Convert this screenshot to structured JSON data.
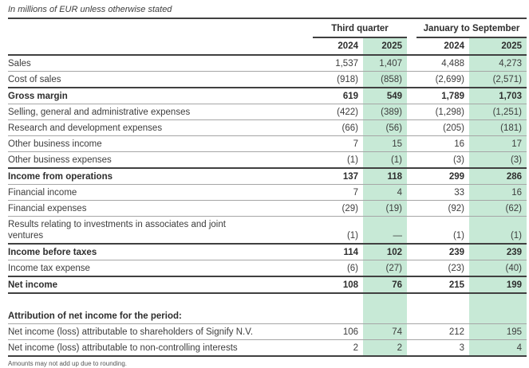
{
  "note": "In millions of EUR unless otherwise stated",
  "colors": {
    "highlight_2025_column": "#c7e9d6",
    "heavy_rule": "#404040",
    "light_rule": "#a6a6a6"
  },
  "table": {
    "group_headers": [
      "Third quarter",
      "January to September"
    ],
    "year_headers": [
      "2024",
      "2025",
      "2024",
      "2025"
    ],
    "rows": [
      {
        "label": "Sales",
        "values": [
          "1,537",
          "1,407",
          "4,488",
          "4,273"
        ]
      },
      {
        "label": "Cost of sales",
        "values": [
          "(918)",
          "(858)",
          "(2,699)",
          "(2,571)"
        ]
      },
      {
        "label": "Gross margin",
        "values": [
          "619",
          "549",
          "1,789",
          "1,703"
        ]
      },
      {
        "label": "Selling, general and administrative expenses",
        "values": [
          "(422)",
          "(389)",
          "(1,298)",
          "(1,251)"
        ]
      },
      {
        "label": "Research and development expenses",
        "values": [
          "(66)",
          "(56)",
          "(205)",
          "(181)"
        ]
      },
      {
        "label": "Other business income",
        "values": [
          "7",
          "15",
          "16",
          "17"
        ]
      },
      {
        "label": "Other business expenses",
        "values": [
          "(1)",
          "(1)",
          "(3)",
          "(3)"
        ]
      },
      {
        "label": "Income from operations",
        "values": [
          "137",
          "118",
          "299",
          "286"
        ]
      },
      {
        "label": "Financial income",
        "values": [
          "7",
          "4",
          "33",
          "16"
        ]
      },
      {
        "label": "Financial expenses",
        "values": [
          "(29)",
          "(19)",
          "(92)",
          "(62)"
        ]
      },
      {
        "label": "Results relating to investments in associates and joint ventures",
        "values": [
          "(1)",
          "—",
          "(1)",
          "(1)"
        ]
      },
      {
        "label": "Income before taxes",
        "values": [
          "114",
          "102",
          "239",
          "239"
        ]
      },
      {
        "label": "Income tax expense",
        "values": [
          "(6)",
          "(27)",
          "(23)",
          "(40)"
        ]
      },
      {
        "label": "Net income",
        "values": [
          "108",
          "76",
          "215",
          "199"
        ]
      }
    ],
    "attribution": {
      "heading": "Attribution of net income for the period:",
      "rows": [
        {
          "label": "Net income (loss) attributable to shareholders of Signify N.V.",
          "values": [
            "106",
            "74",
            "212",
            "195"
          ]
        },
        {
          "label": "Net income (loss) attributable to non-controlling interests",
          "values": [
            "2",
            "2",
            "3",
            "4"
          ]
        }
      ]
    }
  },
  "footnote": "Amounts may not add up due to rounding."
}
